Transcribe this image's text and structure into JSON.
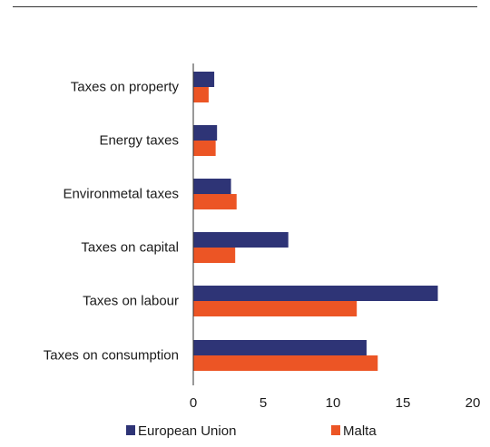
{
  "chart_data": {
    "type": "bar",
    "orientation": "horizontal",
    "categories": [
      "Taxes on property",
      "Energy taxes",
      "Environmetal taxes",
      "Taxes on capital",
      "Taxes on labour",
      "Taxes on consumption"
    ],
    "series": [
      {
        "name": "European Union",
        "color": "#2e3476",
        "values": [
          1.5,
          1.7,
          2.7,
          6.8,
          17.5,
          12.4
        ]
      },
      {
        "name": "Malta",
        "color": "#ec5525",
        "values": [
          1.1,
          1.6,
          3.1,
          3.0,
          11.7,
          13.2
        ]
      }
    ],
    "xlim": [
      0,
      20
    ],
    "xticks": [
      "0",
      "5",
      "10",
      "15",
      "20"
    ],
    "grid": false,
    "legend_position": "bottom"
  }
}
